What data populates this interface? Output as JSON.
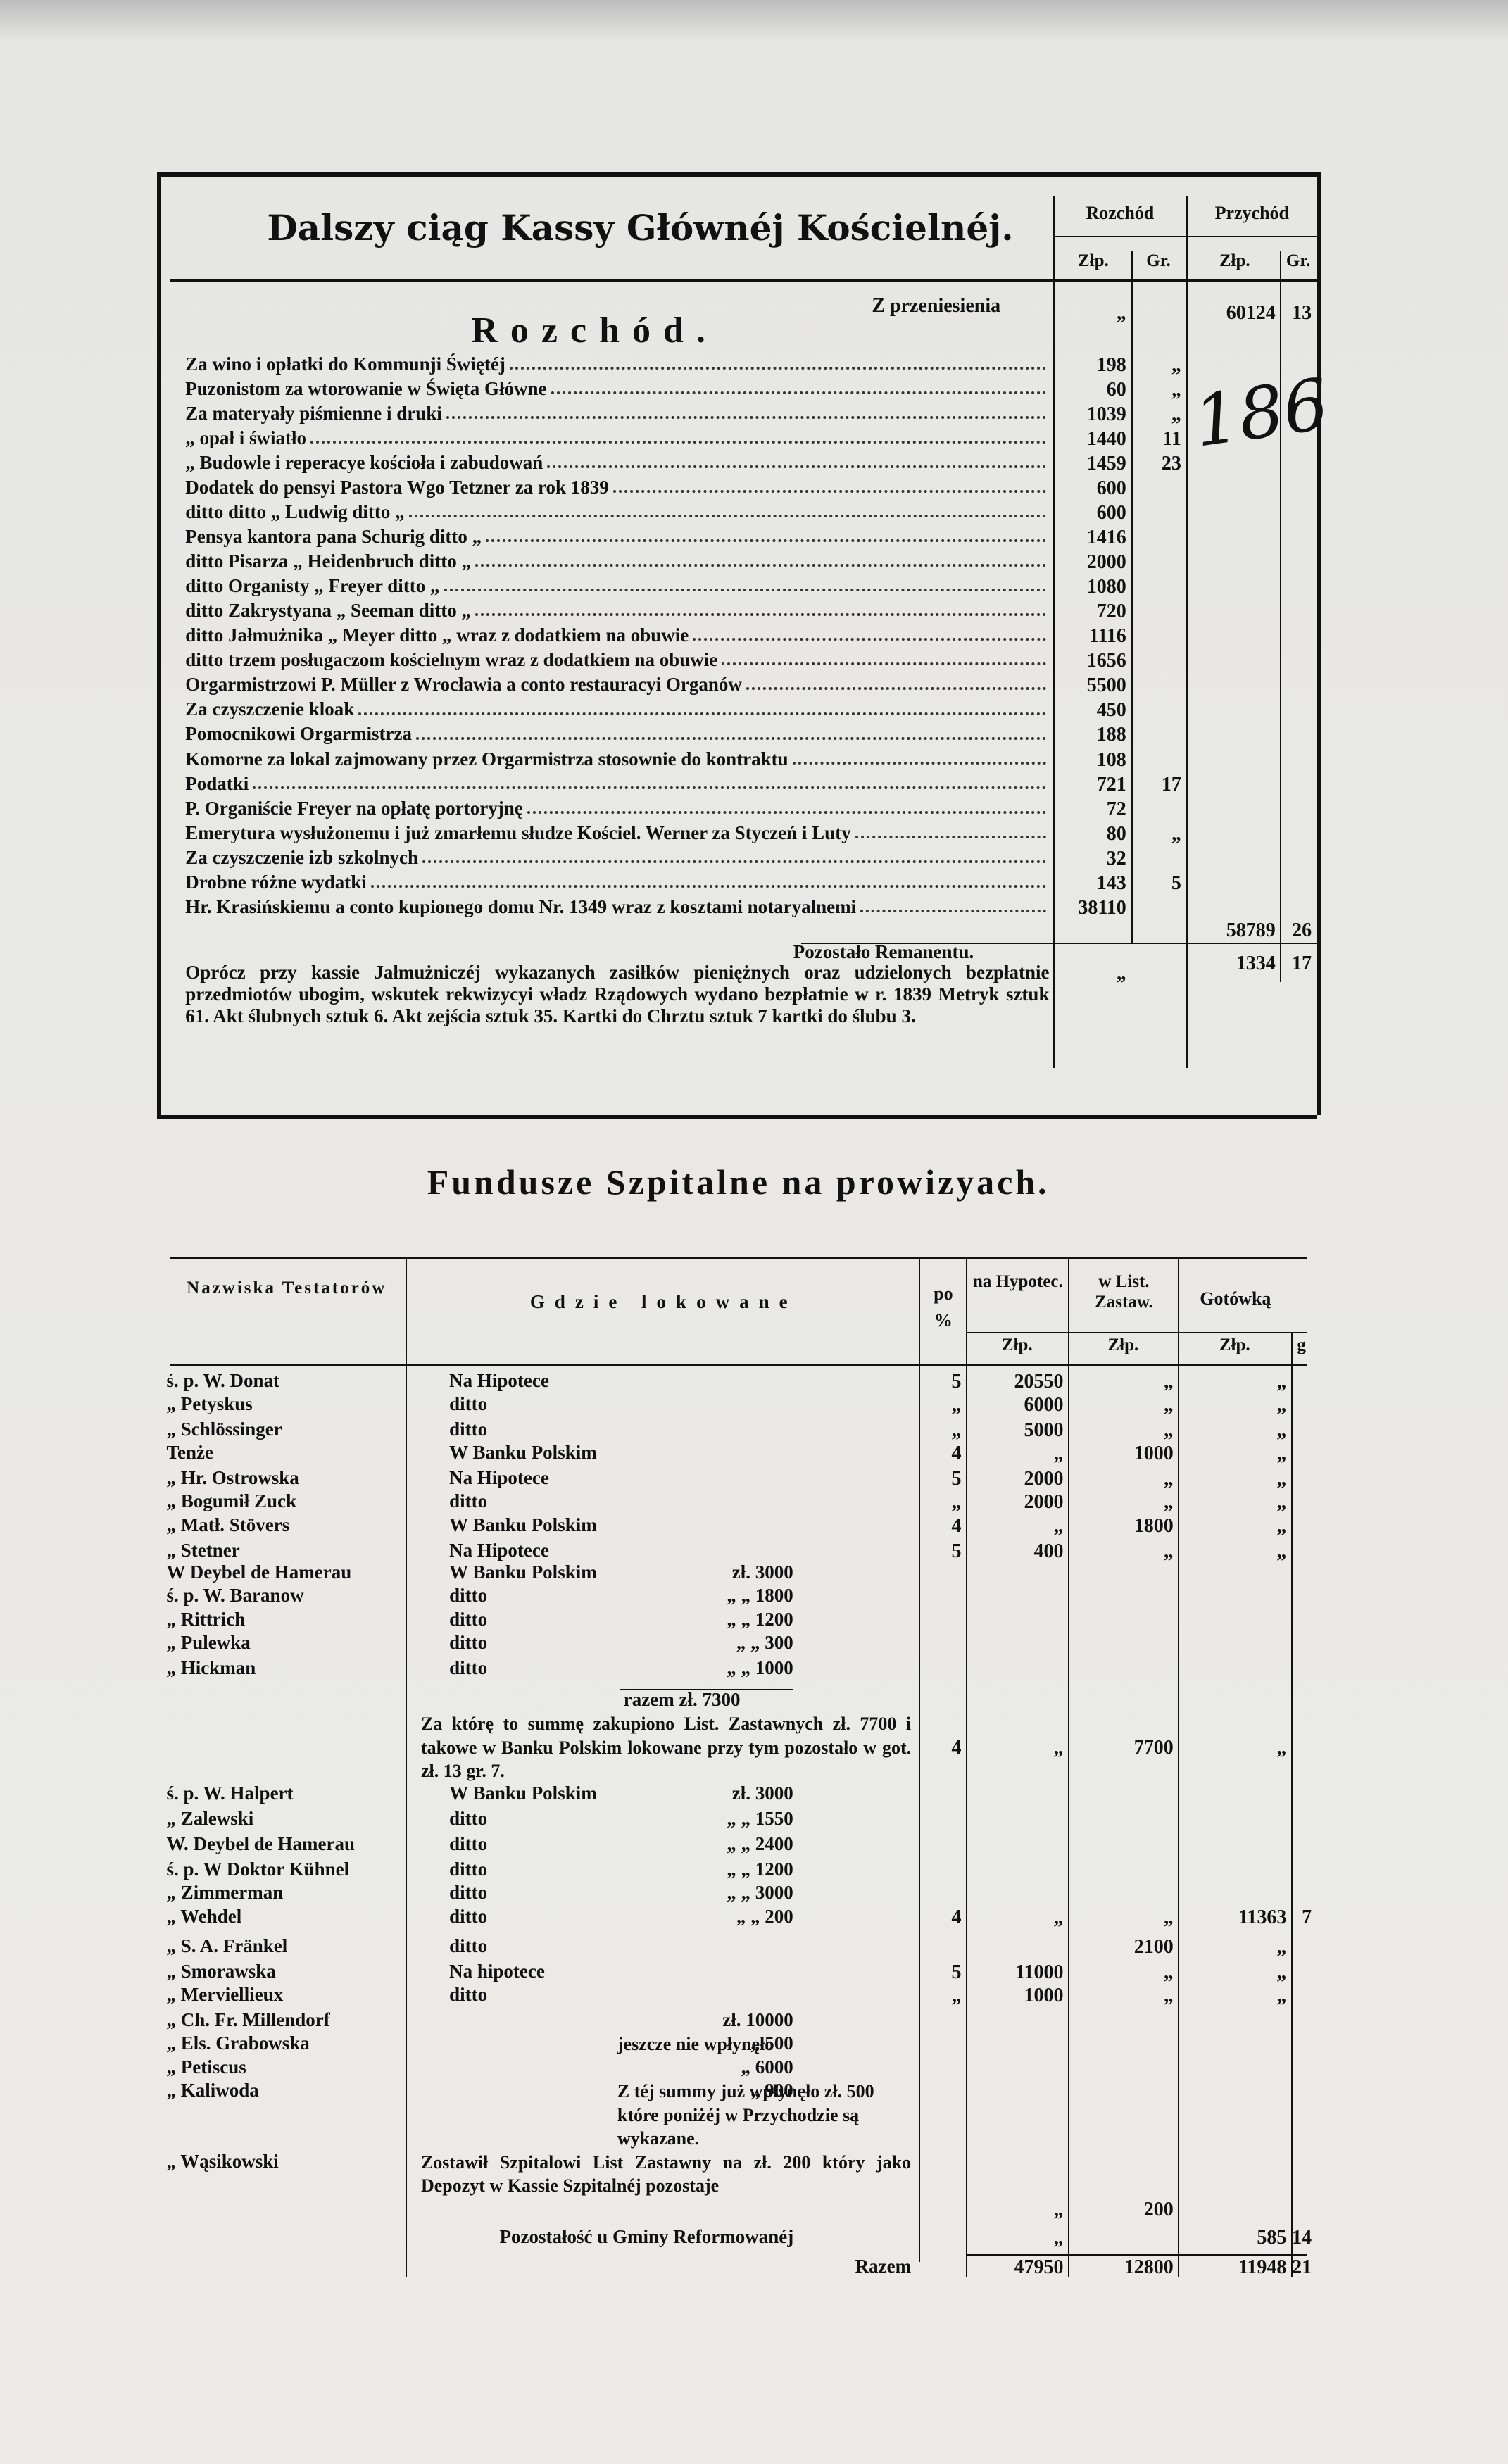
{
  "header": {
    "title": "Dalszy ciąg Kassy Głównéj Kościelnéj.",
    "columns": [
      "Rozchód",
      "Przychód"
    ],
    "units": [
      "Złp.",
      "Gr.",
      "Złp.",
      "Gr."
    ],
    "annotation": "186"
  },
  "expenses": {
    "heading": "Rozchód.",
    "carried": {
      "label": "Z przeniesienia",
      "out_zlp": "„",
      "in_zlp": 60124,
      "in_gr": 13
    },
    "rows": [
      {
        "text": "Za wino i opłatki do Kommunji Świętéj",
        "zlp": 198,
        "gr": "„"
      },
      {
        "text": "Puzonistom za wtorowanie w Święta Główne",
        "zlp": 60,
        "gr": "„"
      },
      {
        "text": "Za materyały piśmienne i druki",
        "zlp": 1039,
        "gr": "„"
      },
      {
        "text": "„ opał i światło",
        "zlp": 1440,
        "gr": 11
      },
      {
        "text": "„ Budowle i reperacye kościoła i zabudowań",
        "zlp": 1459,
        "gr": 23
      },
      {
        "text": "Dodatek do pensyi Pastora Wgo Tetzner za rok 1839",
        "zlp": 600
      },
      {
        "text": "ditto ditto „ Ludwig ditto „",
        "zlp": 600
      },
      {
        "text": "Pensya kantora pana Schurig ditto „",
        "zlp": 1416
      },
      {
        "text": "ditto Pisarza „ Heidenbruch ditto „",
        "zlp": 2000
      },
      {
        "text": "ditto Organisty „ Freyer ditto „",
        "zlp": 1080
      },
      {
        "text": "ditto Zakrystyana „ Seeman ditto „",
        "zlp": 720
      },
      {
        "text": "ditto Jałmużnika „ Meyer ditto „ wraz z dodatkiem na obuwie",
        "zlp": 1116
      },
      {
        "text": "ditto trzem posługaczom kościelnym wraz z dodatkiem na obuwie",
        "zlp": 1656
      },
      {
        "text": "Orgarmistrzowi P. Müller z Wrocławia a conto restauracyi Organów",
        "zlp": 5500
      },
      {
        "text": "Za czyszczenie kloak",
        "zlp": 450
      },
      {
        "text": "Pomocnikowi Orgarmistrza",
        "zlp": 188
      },
      {
        "text": "Komorne za lokal zajmowany przez Orgarmistrza stosownie do kontraktu",
        "zlp": 108
      },
      {
        "text": "Podatki",
        "zlp": 721,
        "gr": 17
      },
      {
        "text": "P. Organiście Freyer na opłatę portoryjnę",
        "zlp": 72
      },
      {
        "text": "Emerytura wysłużonemu i już zmarłemu słudze Kościel. Werner za Styczeń i Luty",
        "zlp": 80,
        "gr": "„"
      },
      {
        "text": "Za czyszczenie izb szkolnych",
        "zlp": 32
      },
      {
        "text": "Drobne różne wydatki",
        "zlp": 143,
        "gr": 5
      },
      {
        "text": "Hr. Krasińskiemu a conto kupionego domu Nr. 1349 wraz z kosztami notaryalnemi",
        "zlp": 38110
      }
    ],
    "total": {
      "zlp": 58789,
      "gr": 26
    },
    "balance": {
      "label": "Pozostało Remanentu.",
      "out_zlp": "„",
      "in_zlp": 1334,
      "in_gr": 17
    },
    "note": "Oprócz przy kassie Jałmużniczéj wykazanych zasiłków pieniężnych oraz udzielonych bezpłatnie przedmiotów ubogim, wskutek rekwizycyi władz Rządowych wydano bezpłatnie w r. 1839 Metryk sztuk 61. Akt ślubnych sztuk 6. Akt zejścia sztuk 35. Kartki do Chrztu sztuk 7 kartki do ślubu 3."
  },
  "hospital": {
    "title": "Fundusze Szpitalne na prowizyach.",
    "columns": {
      "names": "Nazwiska Testatorów",
      "where": "Gdzie lokowane",
      "pct": [
        "po",
        "%"
      ],
      "hyp": "na Hypotec.",
      "list": "w List. Zastaw.",
      "cash": "Gotówką"
    },
    "units": [
      "Złp.",
      "Złp.",
      "Złp.",
      "g"
    ],
    "rows": [
      {
        "name": "ś. p. W. Donat",
        "where": "Na Hipotece",
        "pct": 5,
        "hyp": 20550,
        "list": "„",
        "cash": "„"
      },
      {
        "name": "„ Petyskus",
        "where": "ditto",
        "pct": "„",
        "hyp": 6000,
        "list": "„",
        "cash": "„"
      },
      {
        "name": "„ Schlössinger",
        "where": "ditto",
        "pct": "„",
        "hyp": 5000,
        "list": "„",
        "cash": "„"
      },
      {
        "name": "Tenże",
        "where": "W Banku Polskim",
        "pct": 4,
        "hyp": "„",
        "list": 1000,
        "cash": "„"
      },
      {
        "name": "„ Hr. Ostrowska",
        "where": "Na Hipotece",
        "pct": 5,
        "hyp": 2000,
        "list": "„",
        "cash": "„"
      },
      {
        "name": "„ Bogumił Zuck",
        "where": "ditto",
        "pct": "„",
        "hyp": 2000,
        "list": "„",
        "cash": "„"
      },
      {
        "name": "„ Matł. Stövers",
        "where": "W Banku Polskim",
        "pct": 4,
        "hyp": "„",
        "list": 1800,
        "cash": "„"
      },
      {
        "name": "„ Stetner",
        "where": "Na Hipotece",
        "pct": 5,
        "hyp": 400,
        "list": "„",
        "cash": "„"
      },
      {
        "name": "W Deybel de Hamerau",
        "where": "W Banku Polskim",
        "amount": "zł. 3000"
      },
      {
        "name": "ś. p. W. Baranow",
        "where": "ditto",
        "amount": "„ „ 1800"
      },
      {
        "name": "„ Rittrich",
        "where": "ditto",
        "amount": "„ „ 1200"
      },
      {
        "name": "„ Pulewka",
        "where": "ditto",
        "amount": "„ „ 300"
      },
      {
        "name": "„ Hickman",
        "where": "ditto",
        "amount": "„ „ 1000"
      },
      {
        "amount": "razem zł. 7300"
      },
      {
        "where": "Za którę to summę zakupiono List. Zastawnych zł. 7700 i takowe w Banku Polskim lokowane przy tym pozostało w got. zł. 13 gr. 7.",
        "pct": 4,
        "hyp": "„",
        "list": 7700,
        "cash": "„"
      },
      {
        "name": "ś. p. W. Halpert",
        "where": "W Banku Polskim",
        "amount": "zł. 3000"
      },
      {
        "name": "„ Zalewski",
        "where": "ditto",
        "amount": "„ „ 1550"
      },
      {
        "name": "W. Deybel de Hamerau",
        "where": "ditto",
        "amount": "„ „ 2400"
      },
      {
        "name": "ś. p. W Doktor Kühnel",
        "where": "ditto",
        "amount": "„ „ 1200"
      },
      {
        "name": "„ Zimmerman",
        "where": "ditto",
        "amount": "„ „ 3000"
      },
      {
        "name": "„ Wehdel",
        "where": "ditto",
        "amount": "„ „ 200",
        "pct": 4,
        "hyp": "„",
        "list": "„",
        "cash": 11363,
        "gr": 7
      },
      {
        "name": "„ S. A. Fränkel",
        "where": "ditto",
        "list": 2100,
        "cash": "„"
      },
      {
        "name": "„ Smorawska",
        "where": "Na hipotece",
        "pct": 5,
        "hyp": 11000,
        "list": "„",
        "cash": "„"
      },
      {
        "name": "„ Merviellieux",
        "where": "ditto",
        "pct": "„",
        "hyp": 1000,
        "list": "„",
        "cash": "„"
      },
      {
        "name": "„ Ch. Fr. Millendorf",
        "amount": "zł. 10000"
      },
      {
        "name": "„ Els. Grabowska",
        "amount": "„ 500",
        "remark": "jeszcze nie wpłynęło"
      },
      {
        "name": "„ Petiscus",
        "amount": "„ 6000"
      },
      {
        "name": "„ Kaliwoda",
        "amount": "„ 900",
        "remark": "Z téj summy już wpłynęło zł. 500 które poniżéj w Przychodzie są wykazane."
      },
      {
        "name": "„ Wąsikowski",
        "where": "Zostawił Szpitalowi List Zastawny na zł. 200 który jako Depozyt w Kassie Szpitalnéj pozostaje",
        "hyp": "„",
        "list": 200
      },
      {
        "where": "Pozostałość u Gminy Reformowanéj",
        "hyp": "„",
        "cash": 585,
        "gr": 14
      }
    ],
    "total": {
      "label": "Razem",
      "hyp": 47950,
      "list": 12800,
      "cash": 11948,
      "gr": 21
    }
  }
}
